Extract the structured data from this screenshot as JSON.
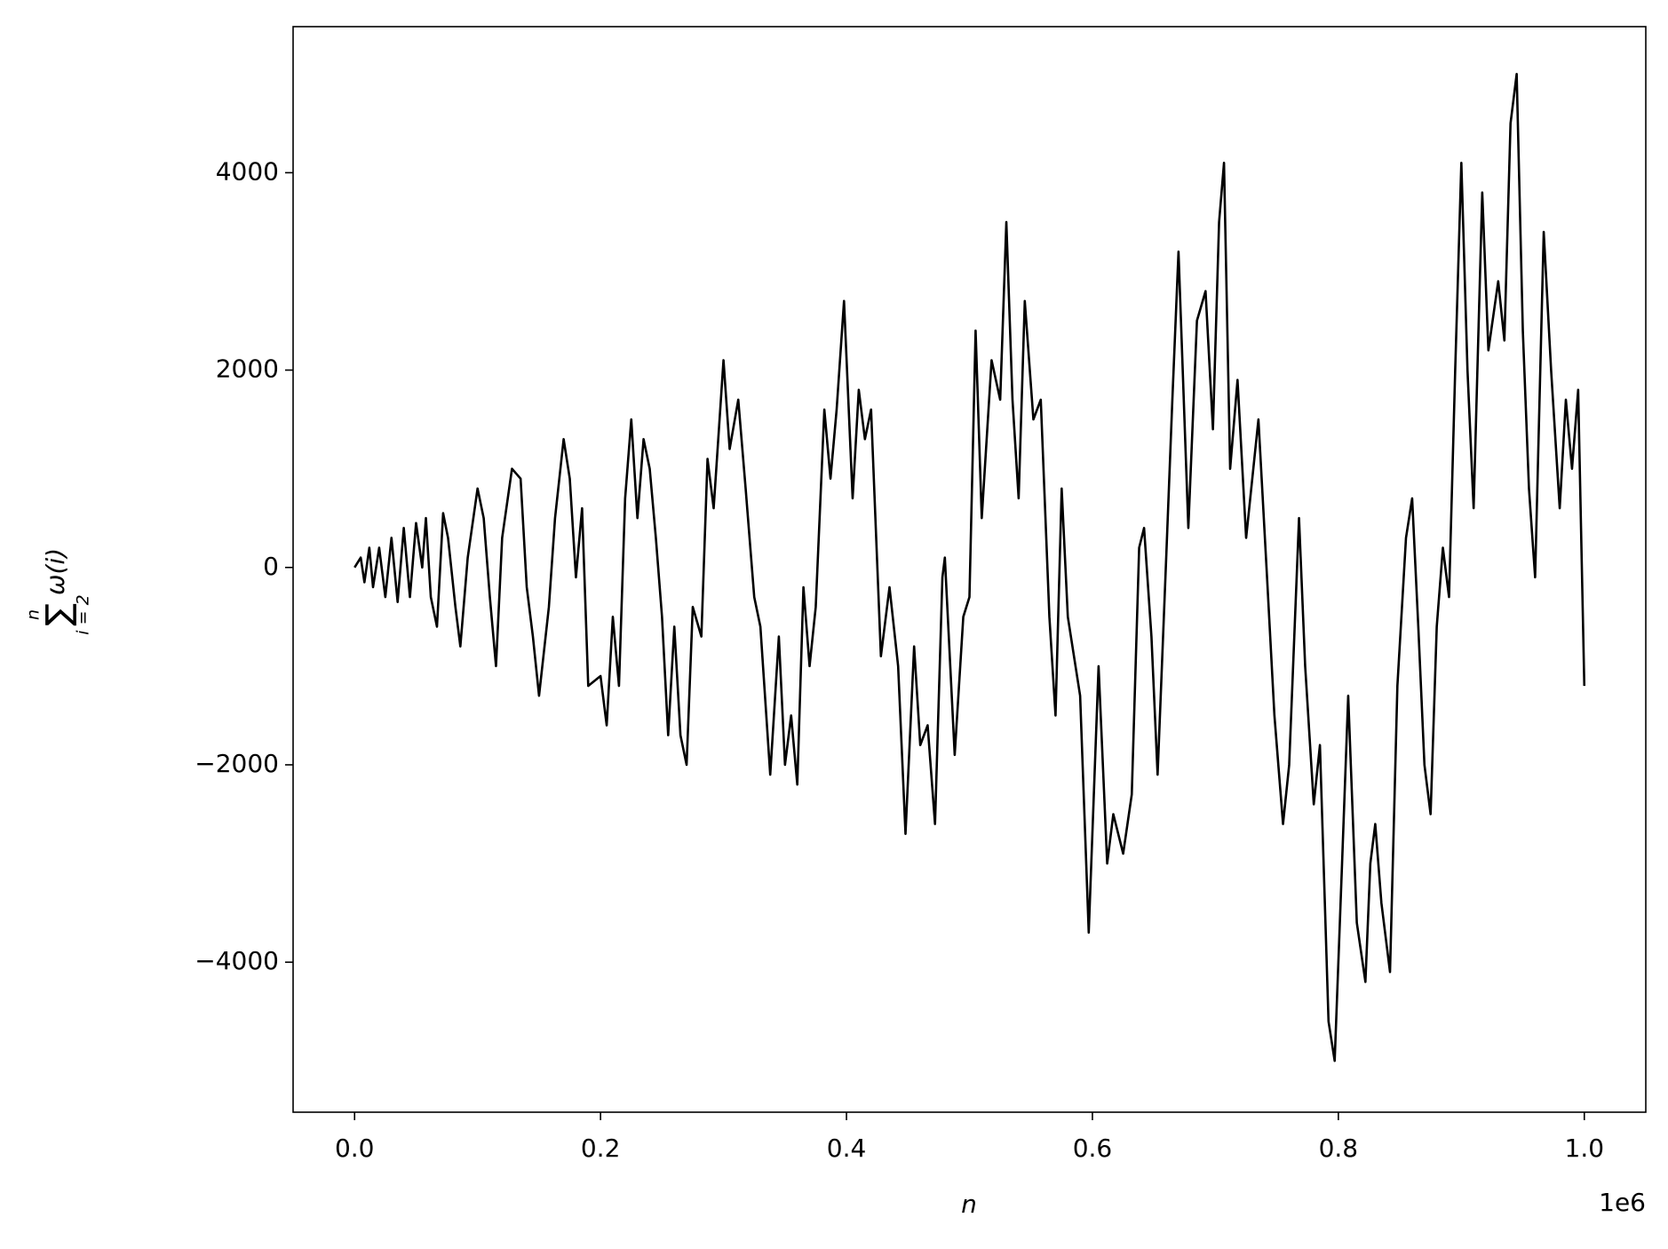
{
  "chart_data": {
    "type": "line",
    "xlabel": "n",
    "ylabel": {
      "sum": "∑",
      "upper": "n",
      "lower": "i = 2",
      "body": "ω(i)"
    },
    "x_offset_label": "1e6",
    "color": "#000000",
    "xlim": [
      -50000,
      1050000
    ],
    "ylim": [
      -5520,
      5480
    ],
    "xticks": [
      {
        "value": 0,
        "label": "0.0"
      },
      {
        "value": 200000,
        "label": "0.2"
      },
      {
        "value": 400000,
        "label": "0.4"
      },
      {
        "value": 600000,
        "label": "0.6"
      },
      {
        "value": 800000,
        "label": "0.8"
      },
      {
        "value": 1000000,
        "label": "1.0"
      }
    ],
    "yticks": [
      {
        "value": -4000,
        "label": "−4000"
      },
      {
        "value": -2000,
        "label": "−2000"
      },
      0,
      2000,
      4000
    ],
    "x": [
      0,
      5000,
      8000,
      12000,
      15000,
      20000,
      25000,
      30000,
      35000,
      40000,
      45000,
      50000,
      55000,
      58000,
      62000,
      67000,
      72000,
      76000,
      82000,
      86000,
      92000,
      100000,
      105000,
      110000,
      115000,
      120000,
      128000,
      135000,
      140000,
      145000,
      150000,
      158000,
      163000,
      170000,
      175000,
      180000,
      185000,
      190000,
      200000,
      205000,
      210000,
      215000,
      220000,
      225000,
      230000,
      235000,
      240000,
      245000,
      250000,
      255000,
      260000,
      265000,
      270000,
      275000,
      282000,
      287000,
      292000,
      300000,
      305000,
      312000,
      318000,
      325000,
      330000,
      338000,
      345000,
      350000,
      355000,
      360000,
      365000,
      370000,
      375000,
      382000,
      387000,
      392000,
      398000,
      405000,
      410000,
      415000,
      420000,
      428000,
      435000,
      442000,
      448000,
      455000,
      460000,
      466000,
      472000,
      478000,
      480000,
      488000,
      495000,
      500000,
      505000,
      510000,
      518000,
      525000,
      530000,
      535000,
      540000,
      545000,
      552000,
      558000,
      565000,
      570000,
      575000,
      580000,
      590000,
      597000,
      605000,
      612000,
      617000,
      625000,
      632000,
      638000,
      642000,
      648000,
      653000,
      660000,
      665000,
      670000,
      678000,
      685000,
      692000,
      698000,
      703000,
      707000,
      712000,
      718000,
      725000,
      735000,
      742000,
      748000,
      755000,
      760000,
      768000,
      773000,
      780000,
      785000,
      792000,
      797000,
      803000,
      808000,
      815000,
      822000,
      826000,
      830000,
      835000,
      842000,
      848000,
      855000,
      860000,
      865000,
      870000,
      875000,
      880000,
      885000,
      890000,
      895000,
      900000,
      905000,
      910000,
      917000,
      922000,
      930000,
      935000,
      940000,
      945000,
      950000,
      955000,
      960000,
      967000,
      973000,
      980000,
      985000,
      990000,
      995000,
      1000000
    ],
    "values": [
      0,
      100,
      -150,
      200,
      -200,
      200,
      -300,
      300,
      -350,
      400,
      -300,
      450,
      0,
      500,
      -300,
      -600,
      550,
      300,
      -400,
      -800,
      100,
      800,
      500,
      -300,
      -1000,
      300,
      1000,
      900,
      -200,
      -700,
      -1300,
      -400,
      500,
      1300,
      900,
      -100,
      600,
      -1200,
      -1100,
      -1600,
      -500,
      -1200,
      700,
      1500,
      500,
      1300,
      1000,
      300,
      -500,
      -1700,
      -600,
      -1700,
      -2000,
      -400,
      -700,
      1100,
      600,
      2100,
      1200,
      1700,
      800,
      -300,
      -600,
      -2100,
      -700,
      -2000,
      -1500,
      -2200,
      -200,
      -1000,
      -400,
      1600,
      900,
      1600,
      2700,
      700,
      1800,
      1300,
      1600,
      -900,
      -200,
      -1000,
      -2700,
      -800,
      -1800,
      -1600,
      -2600,
      -100,
      100,
      -1900,
      -500,
      -300,
      2400,
      500,
      2100,
      1700,
      3500,
      1700,
      700,
      2700,
      1500,
      1700,
      -500,
      -1500,
      800,
      -500,
      -1300,
      -3700,
      -1000,
      -3000,
      -2500,
      -2900,
      -2300,
      200,
      400,
      -700,
      -2100,
      100,
      1700,
      3200,
      400,
      2500,
      2800,
      1400,
      3500,
      4100,
      1000,
      1900,
      300,
      1500,
      -100,
      -1500,
      -2600,
      -2000,
      500,
      -1000,
      -2400,
      -1800,
      -4600,
      -5000,
      -3000,
      -1300,
      -3600,
      -4200,
      -3000,
      -2600,
      -3400,
      -4100,
      -1200,
      300,
      700,
      -600,
      -2000,
      -2500,
      -600,
      200,
      -300,
      2000,
      4100,
      2000,
      600,
      3800,
      2200,
      2900,
      2300,
      4500,
      5000,
      2400,
      800,
      -100,
      3400,
      2000,
      600,
      1700,
      1000,
      1800,
      -1200
    ]
  }
}
